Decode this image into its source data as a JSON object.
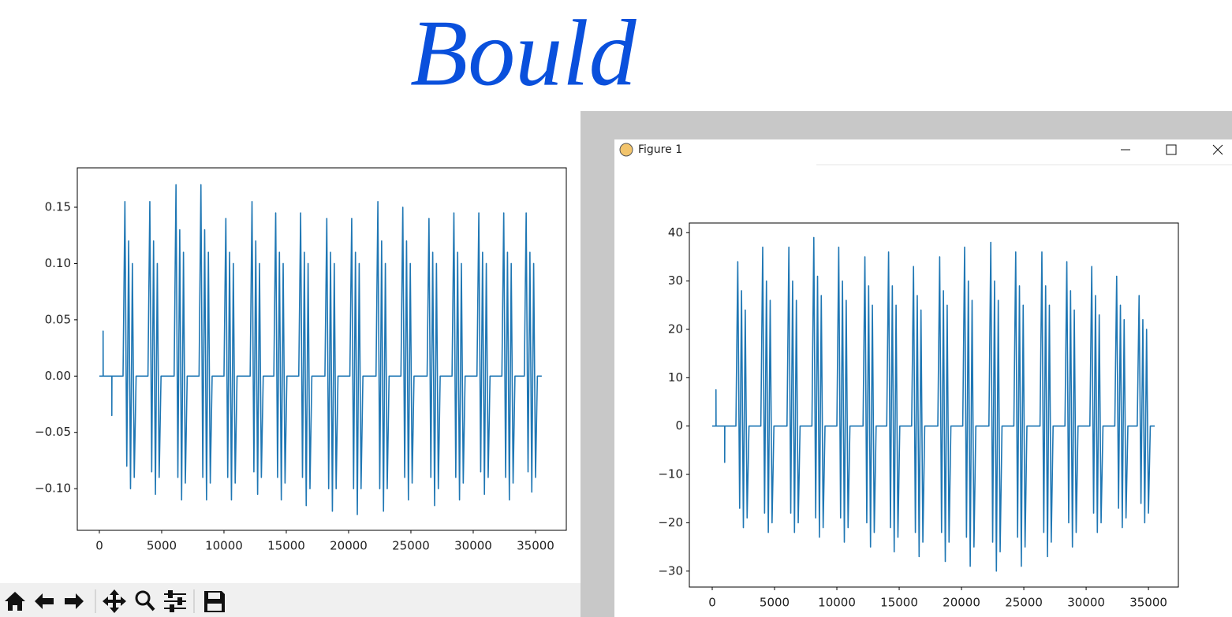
{
  "handwritten_note": "Bould",
  "window": {
    "title": "Figure 1"
  },
  "chart_data": [
    {
      "type": "line",
      "x": [
        0,
        300,
        300,
        310,
        1000,
        1000,
        1010,
        1900,
        2050,
        2200,
        2350,
        2500,
        2650,
        2800,
        2950,
        3900,
        4050,
        4200,
        4350,
        4500,
        4650,
        4800,
        4950,
        6000,
        6150,
        6300,
        6450,
        6600,
        6750,
        6900,
        7050,
        8000,
        8150,
        8300,
        8450,
        8600,
        8750,
        8900,
        9050,
        10000,
        10150,
        10300,
        10450,
        10600,
        10750,
        10900,
        11050,
        12100,
        12250,
        12400,
        12550,
        12700,
        12850,
        13000,
        13150,
        14000,
        14150,
        14300,
        14450,
        14600,
        14750,
        14900,
        15050,
        16000,
        16150,
        16300,
        16450,
        16600,
        16750,
        16900,
        17050,
        18100,
        18250,
        18400,
        18550,
        18700,
        18850,
        19000,
        19150,
        20100,
        20250,
        20400,
        20550,
        20700,
        20850,
        21000,
        21150,
        22200,
        22350,
        22500,
        22650,
        22800,
        22950,
        23100,
        23250,
        24200,
        24350,
        24500,
        24650,
        24800,
        24950,
        25100,
        25250,
        26300,
        26450,
        26600,
        26750,
        26900,
        27050,
        27200,
        27350,
        28300,
        28450,
        28600,
        28750,
        28900,
        29050,
        29200,
        29350,
        30300,
        30450,
        30600,
        30750,
        30900,
        31050,
        31200,
        31350,
        32300,
        32450,
        32600,
        32750,
        32900,
        33050,
        33200,
        33350,
        34100,
        34250,
        34400,
        34550,
        34700,
        34850,
        35000,
        35150,
        35500
      ],
      "series": [
        {
          "color": "#1f77b4",
          "values": [
            0,
            0,
            0.04,
            0,
            0,
            -0.035,
            0,
            0,
            0.155,
            -0.08,
            0.12,
            -0.1,
            0.1,
            -0.09,
            0,
            0,
            0.155,
            -0.085,
            0.12,
            -0.105,
            0.1,
            -0.09,
            0,
            0,
            0.17,
            -0.09,
            0.13,
            -0.11,
            0.11,
            -0.095,
            0,
            0,
            0.17,
            -0.09,
            0.13,
            -0.11,
            0.11,
            -0.095,
            0,
            0,
            0.14,
            -0.09,
            0.11,
            -0.11,
            0.1,
            -0.095,
            0,
            0,
            0.155,
            -0.085,
            0.12,
            -0.105,
            0.1,
            -0.09,
            0,
            0,
            0.145,
            -0.09,
            0.11,
            -0.11,
            0.1,
            -0.095,
            0,
            0,
            0.145,
            -0.09,
            0.11,
            -0.115,
            0.1,
            -0.1,
            0,
            0,
            0.14,
            -0.1,
            0.11,
            -0.12,
            0.1,
            -0.1,
            0,
            0,
            0.14,
            -0.1,
            0.11,
            -0.123,
            0.1,
            -0.1,
            0,
            0,
            0.155,
            -0.1,
            0.12,
            -0.12,
            0.1,
            -0.1,
            0,
            0,
            0.15,
            -0.09,
            0.12,
            -0.11,
            0.1,
            -0.095,
            0,
            0,
            0.14,
            -0.09,
            0.11,
            -0.115,
            0.1,
            -0.1,
            0,
            0,
            0.145,
            -0.09,
            0.11,
            -0.11,
            0.1,
            -0.095,
            0,
            0,
            0.145,
            -0.085,
            0.11,
            -0.105,
            0.1,
            -0.09,
            0,
            0,
            0.145,
            -0.09,
            0.11,
            -0.11,
            0.1,
            -0.095,
            0,
            0,
            0.145,
            -0.085,
            0.11,
            -0.103,
            0.1,
            -0.09,
            0,
            0
          ]
        }
      ],
      "xlim": [
        -1770,
        37470
      ],
      "xticks": [
        0,
        5000,
        10000,
        15000,
        20000,
        25000,
        30000,
        35000
      ],
      "ylim": [
        -0.137,
        0.185
      ],
      "yticks": [
        {
          "value": -0.1,
          "label": "−0.10"
        },
        {
          "value": -0.05,
          "label": "−0.05"
        },
        {
          "value": 0,
          "label": "0.00"
        },
        {
          "value": 0.05,
          "label": "0.05"
        },
        {
          "value": 0.1,
          "label": "0.10"
        },
        {
          "value": 0.15,
          "label": "0.15"
        }
      ]
    },
    {
      "type": "line",
      "x": [
        0,
        300,
        300,
        310,
        1000,
        1000,
        1010,
        1900,
        2050,
        2200,
        2350,
        2500,
        2650,
        2800,
        2950,
        3900,
        4050,
        4200,
        4350,
        4500,
        4650,
        4800,
        4950,
        6000,
        6150,
        6300,
        6450,
        6600,
        6750,
        6900,
        7050,
        8000,
        8150,
        8300,
        8450,
        8600,
        8750,
        8900,
        9050,
        10000,
        10150,
        10300,
        10450,
        10600,
        10750,
        10900,
        11050,
        12100,
        12250,
        12400,
        12550,
        12700,
        12850,
        13000,
        13150,
        14000,
        14150,
        14300,
        14450,
        14600,
        14750,
        14900,
        15050,
        16000,
        16150,
        16300,
        16450,
        16600,
        16750,
        16900,
        17050,
        18100,
        18250,
        18400,
        18550,
        18700,
        18850,
        19000,
        19150,
        20100,
        20250,
        20400,
        20550,
        20700,
        20850,
        21000,
        21150,
        22200,
        22350,
        22500,
        22650,
        22800,
        22950,
        23100,
        23250,
        24200,
        24350,
        24500,
        24650,
        24800,
        24950,
        25100,
        25250,
        26300,
        26450,
        26600,
        26750,
        26900,
        27050,
        27200,
        27350,
        28300,
        28450,
        28600,
        28750,
        28900,
        29050,
        29200,
        29350,
        30300,
        30450,
        30600,
        30750,
        30900,
        31050,
        31200,
        31350,
        32300,
        32450,
        32600,
        32750,
        32900,
        33050,
        33200,
        33350,
        34100,
        34250,
        34400,
        34550,
        34700,
        34850,
        35000,
        35150,
        35500
      ],
      "series": [
        {
          "color": "#1f77b4",
          "values": [
            0,
            0,
            7.5,
            0,
            0,
            -7.5,
            0,
            0,
            34,
            -17,
            28,
            -21,
            24,
            -19,
            0,
            0,
            37,
            -18,
            30,
            -22,
            26,
            -20,
            0,
            0,
            37,
            -18,
            30,
            -22,
            26,
            -20,
            0,
            0,
            39,
            -19,
            31,
            -23,
            27,
            -21,
            0,
            0,
            37,
            -19,
            30,
            -24,
            26,
            -21,
            0,
            0,
            35,
            -20,
            29,
            -25,
            25,
            -22,
            0,
            0,
            36,
            -21,
            29,
            -26,
            25,
            -23,
            0,
            0,
            33,
            -22,
            27,
            -27,
            24,
            -24,
            0,
            0,
            35,
            -22,
            28,
            -28,
            25,
            -24,
            0,
            0,
            37,
            -23,
            30,
            -29,
            26,
            -25,
            0,
            0,
            38,
            -24,
            30,
            -30,
            26,
            -26,
            0,
            0,
            36,
            -23,
            29,
            -29,
            25,
            -25,
            0,
            0,
            36,
            -22,
            29,
            -27,
            25,
            -24,
            0,
            0,
            34,
            -20,
            28,
            -25,
            24,
            -22,
            0,
            0,
            33,
            -18,
            27,
            -22,
            23,
            -20,
            0,
            0,
            31,
            -17,
            25,
            -21,
            22,
            -19,
            0,
            0,
            27,
            -16,
            22,
            -20,
            20,
            -18,
            0,
            0
          ]
        }
      ],
      "xlim": [
        -1835,
        37400
      ],
      "xticks": [
        0,
        5000,
        10000,
        15000,
        20000,
        25000,
        30000,
        35000
      ],
      "ylim": [
        -33.3,
        42
      ],
      "yticks": [
        {
          "value": -30,
          "label": "−30"
        },
        {
          "value": -20,
          "label": "−20"
        },
        {
          "value": -10,
          "label": "−10"
        },
        0,
        10,
        20,
        30,
        40
      ]
    }
  ]
}
